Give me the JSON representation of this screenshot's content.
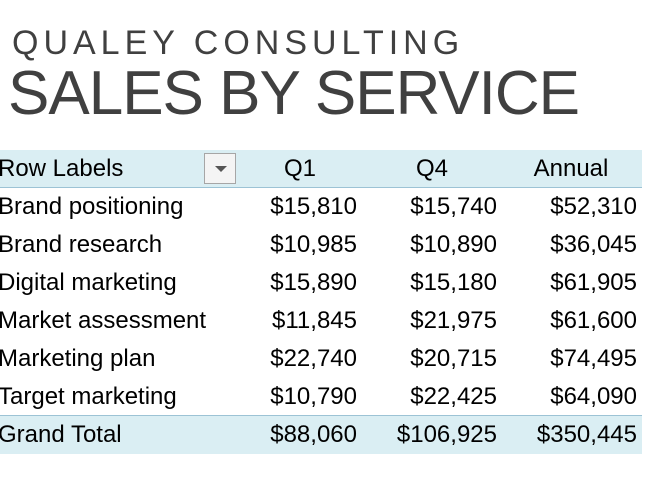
{
  "header": {
    "company": "QUALEY CONSULTING",
    "title": "SALES BY SERVICE"
  },
  "table": {
    "columns": [
      "Row Labels",
      "Q1",
      "Q4",
      "Annual"
    ],
    "rows": [
      [
        "Brand positioning",
        "$15,810",
        "$15,740",
        "$52,310"
      ],
      [
        "Brand research",
        "$10,985",
        "$10,890",
        "$36,045"
      ],
      [
        "Digital marketing",
        "$15,890",
        "$15,180",
        "$61,905"
      ],
      [
        "Market assessment",
        "$11,845",
        "$21,975",
        "$61,600"
      ],
      [
        "Marketing plan",
        "$22,740",
        "$20,715",
        "$74,495"
      ],
      [
        "Target marketing",
        "$10,790",
        "$22,425",
        "$64,090"
      ]
    ],
    "total": [
      "Grand Total",
      "$88,060",
      "$106,925",
      "$350,445"
    ]
  }
}
